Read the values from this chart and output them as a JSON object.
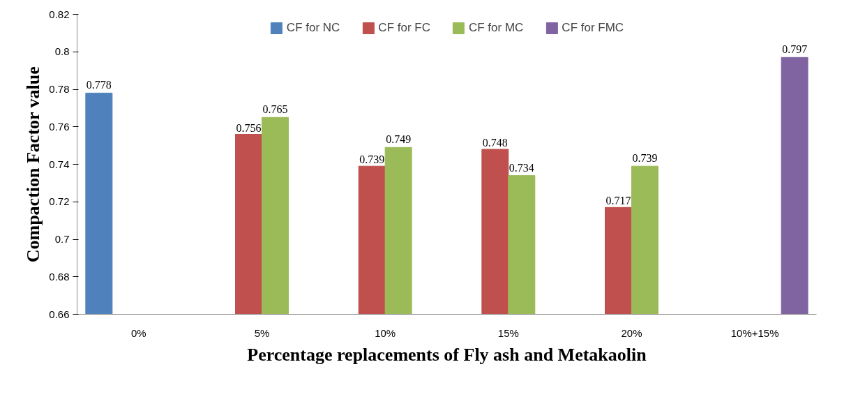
{
  "chart_data": {
    "type": "bar",
    "xlabel": "Percentage replacements of Fly ash and Metakaolin",
    "ylabel": "Compaction Factor value",
    "categories": [
      "0%",
      "5%",
      "10%",
      "15%",
      "20%",
      "10%+15%"
    ],
    "series": [
      {
        "name": "CF for NC",
        "color": "#4f81bd",
        "values": [
          0.778,
          null,
          null,
          null,
          null,
          null
        ]
      },
      {
        "name": "CF for FC",
        "color": "#c0504d",
        "values": [
          null,
          0.756,
          0.739,
          0.748,
          0.717,
          null
        ]
      },
      {
        "name": "CF for MC",
        "color": "#9bbb59",
        "values": [
          null,
          0.765,
          0.749,
          0.734,
          0.739,
          null
        ]
      },
      {
        "name": "CF for FMC",
        "color": "#8064a2",
        "values": [
          null,
          null,
          null,
          null,
          null,
          0.797
        ]
      }
    ],
    "ylim": [
      0.66,
      0.82
    ],
    "yticks": [
      0.66,
      0.68,
      0.7,
      0.72,
      0.74,
      0.76,
      0.78,
      0.8,
      0.82
    ],
    "data_labels": true,
    "legend": "top",
    "grid": false
  }
}
